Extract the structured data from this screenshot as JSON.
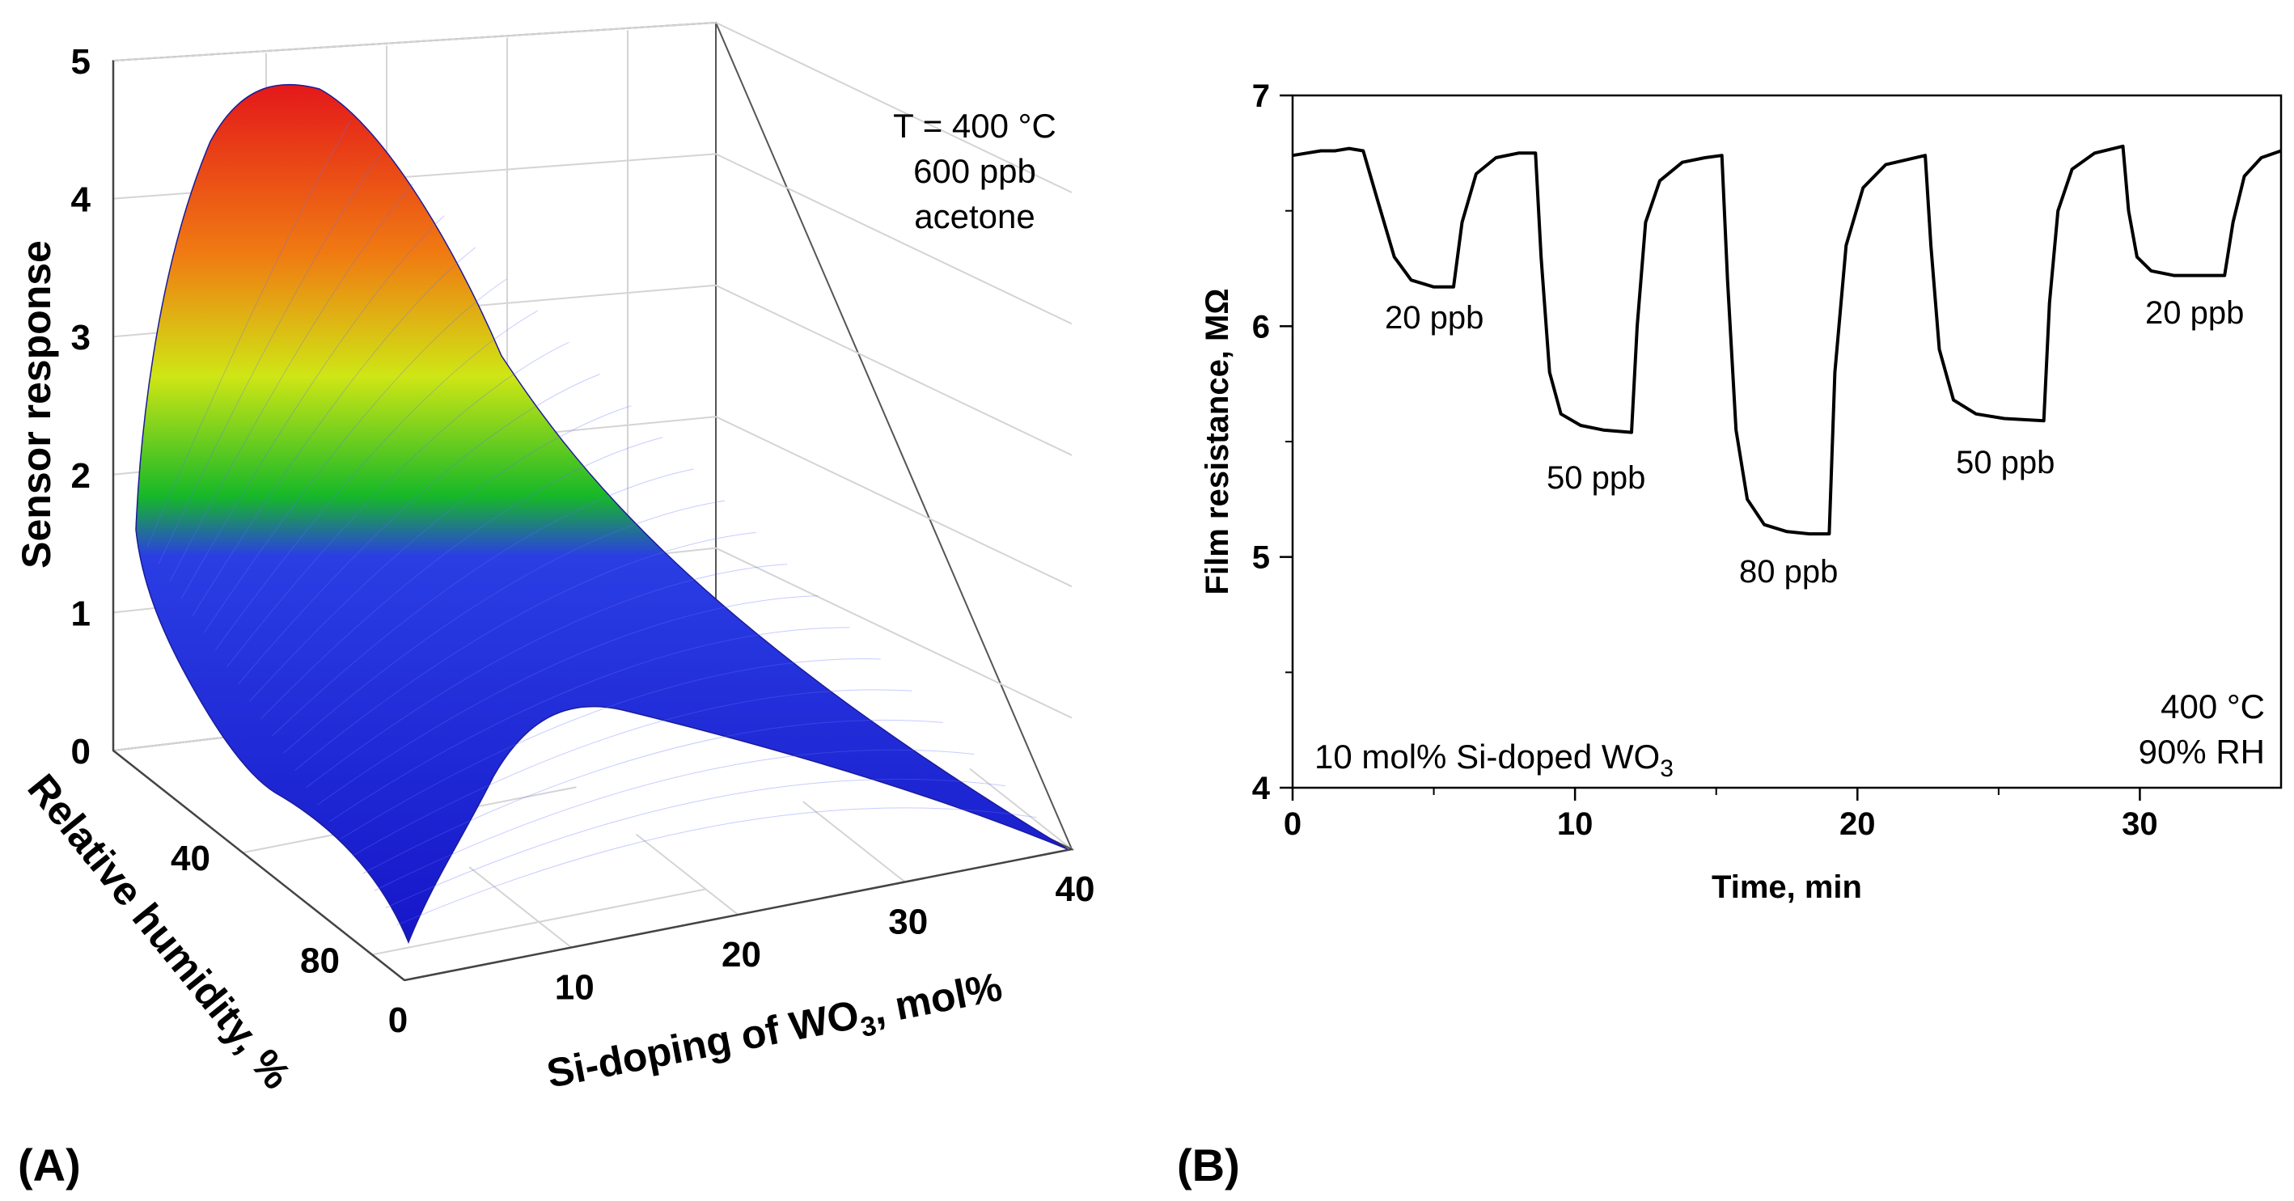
{
  "panels": {
    "a_label": "(A)",
    "b_label": "(B)"
  },
  "chart_data": [
    {
      "type": "surface3d",
      "panel": "A",
      "zlabel": "Sensor response",
      "xlabel_prefix": "Si-doping of WO",
      "xlabel_sub": "3",
      "xlabel_suffix": ", mol%",
      "ylabel": "Relative humidity, %",
      "zlim": [
        0,
        5
      ],
      "z_ticks": [
        "0",
        "1",
        "2",
        "3",
        "4",
        "5"
      ],
      "x_ticks": [
        "0",
        "10",
        "20",
        "30",
        "40"
      ],
      "y_ticks": [
        "40",
        "80"
      ],
      "xlim": [
        0,
        40
      ],
      "ylim": [
        0,
        90
      ],
      "annotation": [
        "T = 400 °C",
        "600 ppb",
        "acetone"
      ],
      "peak": {
        "si_doping_mol_pct": 10,
        "relative_humidity_pct": 0,
        "response": 4.8
      },
      "colormap": [
        "#1a1ad8",
        "#2f46e6",
        "#16c020",
        "#d8e814",
        "#f07a10",
        "#e51a1a"
      ]
    },
    {
      "type": "line",
      "panel": "B",
      "xlabel": "Time, min",
      "ylabel": "Film resistance, MΩ",
      "xlim": [
        0,
        35
      ],
      "ylim": [
        4,
        7
      ],
      "x_ticks": [
        "0",
        "10",
        "20",
        "30"
      ],
      "y_ticks": [
        "4",
        "5",
        "6",
        "7"
      ],
      "series": [
        {
          "name": "10 mol% Si-doped WO3",
          "x": [
            0,
            0.5,
            1,
            1.5,
            2,
            2.5,
            3,
            3.6,
            4.2,
            5,
            5.7,
            6,
            6.5,
            7.2,
            8,
            8.6,
            8.8,
            9.1,
            9.5,
            10.2,
            11,
            12,
            12.2,
            12.5,
            13,
            13.8,
            14.6,
            15.2,
            15.4,
            15.7,
            16.1,
            16.7,
            17.5,
            18.3,
            19.0,
            19.2,
            19.6,
            20.2,
            21.0,
            22.4,
            22.6,
            22.9,
            23.4,
            24.2,
            25.2,
            26.6,
            26.8,
            27.1,
            27.6,
            28.4,
            29.4,
            29.6,
            29.9,
            30.4,
            31.2,
            32.3,
            33.0,
            33.3,
            33.7,
            34.3,
            35
          ],
          "y": [
            6.74,
            6.75,
            6.76,
            6.76,
            6.77,
            6.76,
            6.55,
            6.3,
            6.2,
            6.17,
            6.17,
            6.45,
            6.66,
            6.73,
            6.75,
            6.75,
            6.3,
            5.8,
            5.62,
            5.57,
            5.55,
            5.54,
            6.0,
            6.45,
            6.63,
            6.71,
            6.73,
            6.74,
            6.2,
            5.55,
            5.25,
            5.14,
            5.11,
            5.1,
            5.1,
            5.8,
            6.35,
            6.6,
            6.7,
            6.74,
            6.35,
            5.9,
            5.68,
            5.62,
            5.6,
            5.59,
            6.1,
            6.5,
            6.68,
            6.75,
            6.78,
            6.5,
            6.3,
            6.24,
            6.22,
            6.22,
            6.22,
            6.45,
            6.65,
            6.73,
            6.76
          ]
        }
      ],
      "annotations": [
        "20 ppb",
        "50 ppb",
        "80 ppb",
        "50 ppb",
        "20 ppb"
      ],
      "legend_text_prefix": "10 mol% Si-doped WO",
      "legend_text_sub": "3",
      "conditions": [
        "400 °C",
        "90% RH"
      ]
    }
  ]
}
